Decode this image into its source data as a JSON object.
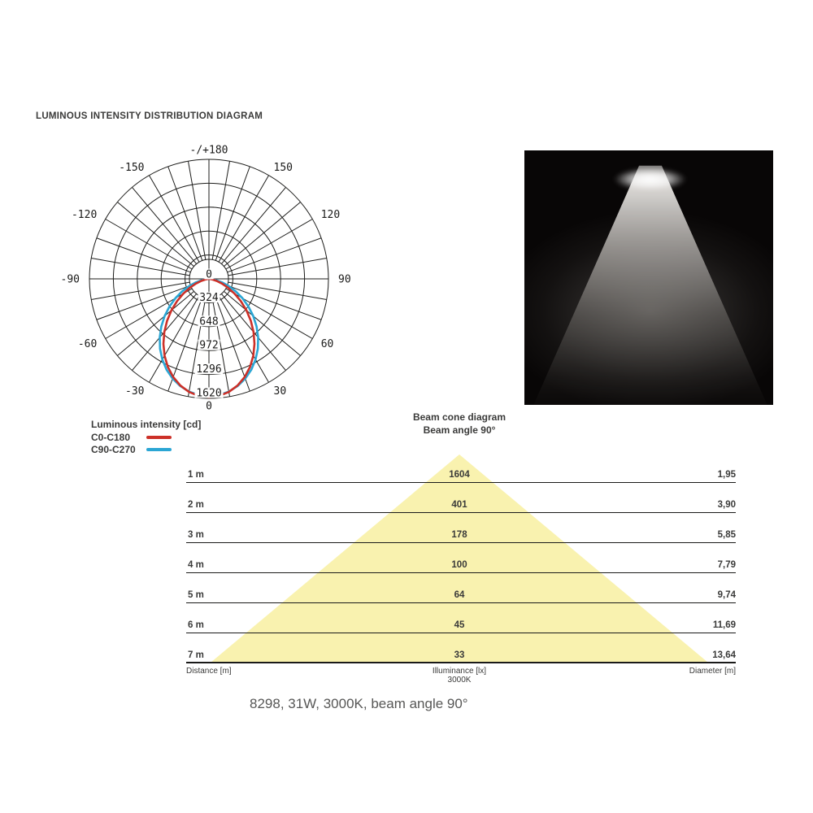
{
  "page": {
    "title": "LUMINOUS INTENSITY DISTRIBUTION DIAGRAM",
    "caption": "8298, 31W, 3000K, beam angle 90°"
  },
  "legend": {
    "title": "Luminous intensity [cd]",
    "items": [
      {
        "label": "C0-C180",
        "color": "#cc3028"
      },
      {
        "label": "C90-C270",
        "color": "#2ba6d4"
      }
    ]
  },
  "beam_photo": {
    "description": "rendered light beam on black background",
    "background": "#080606"
  },
  "chart_data": [
    {
      "type": "line",
      "subtype": "polar-luminous-intensity",
      "title": "Luminous intensity [cd]",
      "units": "cd",
      "rlim": [
        0,
        1620
      ],
      "radial_ticks": [
        0,
        324,
        648,
        972,
        1296,
        1620
      ],
      "grid_angle_step_deg": 10,
      "angle_labels": [
        {
          "angle_deg": 180,
          "label": "-/+180"
        },
        {
          "angle_deg": -150,
          "label": "-150"
        },
        {
          "angle_deg": 150,
          "label": "150"
        },
        {
          "angle_deg": -120,
          "label": "-120"
        },
        {
          "angle_deg": 120,
          "label": "120"
        },
        {
          "angle_deg": -90,
          "label": "-90"
        },
        {
          "angle_deg": 90,
          "label": "90"
        },
        {
          "angle_deg": -60,
          "label": "-60"
        },
        {
          "angle_deg": 60,
          "label": "60"
        },
        {
          "angle_deg": -30,
          "label": "-30"
        },
        {
          "angle_deg": 30,
          "label": "30"
        },
        {
          "angle_deg": 0,
          "label": "0"
        }
      ],
      "series": [
        {
          "name": "C0-C180",
          "color": "#cc3028",
          "symmetric": true,
          "angles_deg": [
            0,
            5,
            10,
            15,
            20,
            25,
            30,
            35,
            40,
            45,
            50,
            55,
            60,
            65,
            70,
            75,
            80,
            85,
            90
          ],
          "values_cd": [
            1604,
            1592,
            1556,
            1497,
            1416,
            1318,
            1203,
            1076,
            941,
            802,
            663,
            528,
            401,
            286,
            188,
            107,
            48,
            12,
            0
          ]
        },
        {
          "name": "C90-C270",
          "color": "#2ba6d4",
          "symmetric": true,
          "angles_deg": [
            0,
            5,
            10,
            15,
            20,
            25,
            30,
            35,
            40,
            45,
            50,
            55,
            60,
            65,
            70,
            75,
            80,
            85,
            90
          ],
          "values_cd": [
            1590,
            1580,
            1552,
            1504,
            1439,
            1359,
            1263,
            1156,
            1038,
            913,
            784,
            653,
            525,
            400,
            286,
            183,
            97,
            32,
            0
          ]
        }
      ]
    },
    {
      "type": "table",
      "title": "Beam cone diagram",
      "subtitle": "Beam angle 90°",
      "beam_angle_deg": 90,
      "cone_color": "#f9f2af",
      "columns": [
        "Distance [m]",
        "Illuminance [lx]",
        "Diameter [m]"
      ],
      "center_note": "3000K",
      "rows": [
        {
          "distance": "1 m",
          "illuminance": "1604",
          "diameter": "1,95"
        },
        {
          "distance": "2 m",
          "illuminance": "401",
          "diameter": "3,90"
        },
        {
          "distance": "3 m",
          "illuminance": "178",
          "diameter": "5,85"
        },
        {
          "distance": "4 m",
          "illuminance": "100",
          "diameter": "7,79"
        },
        {
          "distance": "5 m",
          "illuminance": "64",
          "diameter": "9,74"
        },
        {
          "distance": "6 m",
          "illuminance": "45",
          "diameter": "11,69"
        },
        {
          "distance": "7 m",
          "illuminance": "33",
          "diameter": "13,64"
        }
      ]
    }
  ]
}
